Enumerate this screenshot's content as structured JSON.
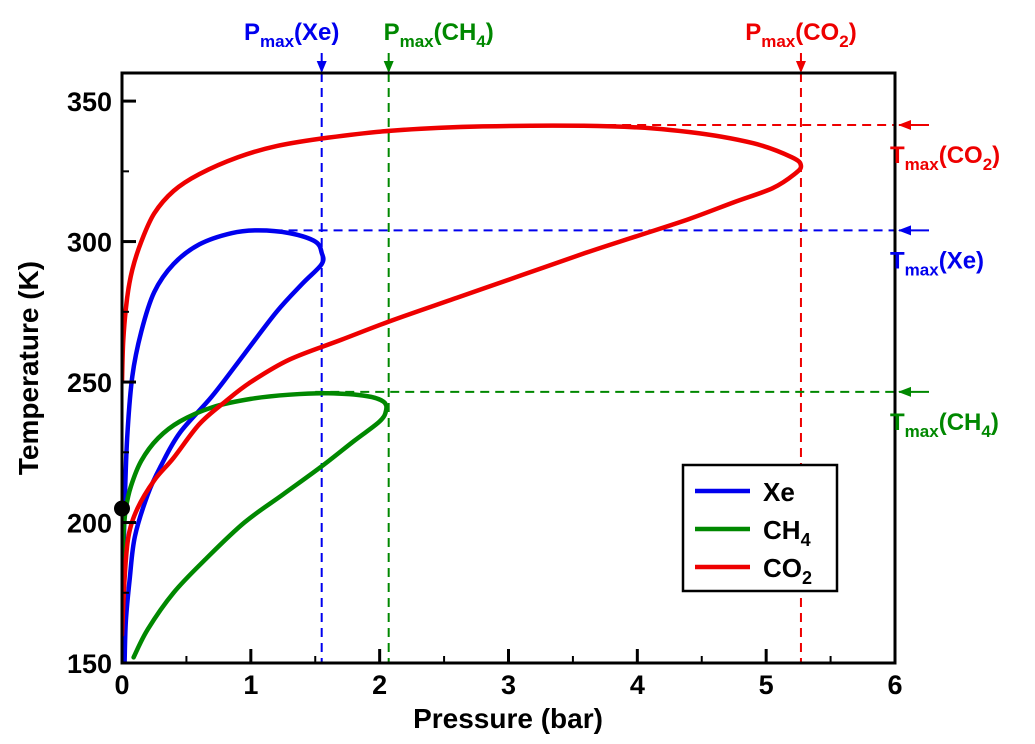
{
  "chart_data": {
    "type": "line",
    "title": "",
    "xlabel": "Pressure (bar)",
    "ylabel": "Temperature (K)",
    "xlim": [
      0,
      6
    ],
    "ylim": [
      150,
      360
    ],
    "xticks": [
      "0",
      "1",
      "2",
      "3",
      "4",
      "5",
      "6"
    ],
    "yticks": [
      "150",
      "200",
      "250",
      "300",
      "350"
    ],
    "grid": false,
    "legend": {
      "placement": "bottom-right",
      "entries": [
        {
          "base": "Xe",
          "sub": ""
        },
        {
          "base": "CH",
          "sub": "4"
        },
        {
          "base": "CO",
          "sub": "2"
        }
      ]
    },
    "series": [
      {
        "name": "Xe",
        "color": "#0000ee",
        "points": [
          [
            0.02,
            150
          ],
          [
            0.03,
            165
          ],
          [
            0.06,
            180
          ],
          [
            0.1,
            195
          ],
          [
            0.2,
            210
          ],
          [
            0.3,
            220
          ],
          [
            0.45,
            232
          ],
          [
            0.7,
            245
          ],
          [
            0.95,
            260
          ],
          [
            1.2,
            275
          ],
          [
            1.4,
            285
          ],
          [
            1.55,
            292
          ],
          [
            1.55,
            296
          ],
          [
            1.5,
            300
          ],
          [
            1.3,
            303
          ],
          [
            1.06,
            304
          ],
          [
            0.85,
            303
          ],
          [
            0.6,
            299
          ],
          [
            0.4,
            292
          ],
          [
            0.25,
            282
          ],
          [
            0.15,
            268
          ],
          [
            0.08,
            252
          ],
          [
            0.04,
            230
          ],
          [
            0.02,
            205
          ],
          [
            0.01,
            185
          ],
          [
            0.0,
            170
          ]
        ]
      },
      {
        "name": "CH4",
        "color": "#008800",
        "points": [
          [
            0.09,
            152
          ],
          [
            0.2,
            162
          ],
          [
            0.4,
            175
          ],
          [
            0.65,
            187
          ],
          [
            0.95,
            200
          ],
          [
            1.25,
            210
          ],
          [
            1.55,
            220
          ],
          [
            1.8,
            229
          ],
          [
            2.0,
            236
          ],
          [
            2.05,
            240
          ],
          [
            2.03,
            243
          ],
          [
            1.9,
            245
          ],
          [
            1.6,
            246
          ],
          [
            1.3,
            245.5
          ],
          [
            1.0,
            244
          ],
          [
            0.7,
            241
          ],
          [
            0.45,
            236
          ],
          [
            0.28,
            230
          ],
          [
            0.15,
            222
          ],
          [
            0.07,
            213
          ],
          [
            0.03,
            205
          ],
          [
            0.01,
            195
          ],
          [
            0.0,
            180
          ],
          [
            0.0,
            165
          ]
        ]
      },
      {
        "name": "CO2",
        "color": "#ee0000",
        "points": [
          [
            0.0,
            160
          ],
          [
            0.02,
            180
          ],
          [
            0.05,
            195
          ],
          [
            0.12,
            205
          ],
          [
            0.25,
            215
          ],
          [
            0.4,
            223
          ],
          [
            0.6,
            235
          ],
          [
            0.8,
            243
          ],
          [
            1.0,
            250
          ],
          [
            1.3,
            258
          ],
          [
            1.7,
            265
          ],
          [
            2.1,
            272
          ],
          [
            2.6,
            280
          ],
          [
            3.1,
            288
          ],
          [
            3.6,
            296
          ],
          [
            4.0,
            302
          ],
          [
            4.4,
            308
          ],
          [
            4.75,
            314
          ],
          [
            5.05,
            319
          ],
          [
            5.22,
            324
          ],
          [
            5.27,
            327
          ],
          [
            5.2,
            330
          ],
          [
            4.9,
            335
          ],
          [
            4.4,
            339
          ],
          [
            3.8,
            341
          ],
          [
            2.8,
            341
          ],
          [
            2.1,
            339.5
          ],
          [
            1.6,
            337
          ],
          [
            1.2,
            334
          ],
          [
            0.9,
            330
          ],
          [
            0.6,
            324
          ],
          [
            0.4,
            318
          ],
          [
            0.25,
            310
          ],
          [
            0.15,
            300
          ],
          [
            0.08,
            290
          ],
          [
            0.04,
            280
          ],
          [
            0.01,
            265
          ],
          [
            0.0,
            250
          ]
        ]
      }
    ],
    "point_marker": {
      "x": 0,
      "y": 205
    },
    "reference_lines": {
      "vertical": [
        {
          "x": 1.55,
          "color": "#0000ee"
        },
        {
          "x": 2.07,
          "color": "#008800"
        },
        {
          "x": 5.27,
          "color": "#ee0000"
        }
      ],
      "horizontal": [
        {
          "y": 304,
          "color": "#0000ee",
          "from": 1.06
        },
        {
          "y": 246.5,
          "color": "#008800",
          "from": 1.5
        },
        {
          "y": 341.5,
          "color": "#ee0000",
          "from": 3.3
        }
      ]
    },
    "annotations": {
      "top": [
        {
          "base": "P",
          "sub": "max",
          "rest": "(Xe)",
          "sub2": "",
          "tail": "",
          "color": "#0000ee",
          "x": 1.55
        },
        {
          "base": "P",
          "sub": "max",
          "rest": "(CH",
          "sub2": "4",
          "tail": ")",
          "color": "#008800",
          "x": 2.07
        },
        {
          "base": "P",
          "sub": "max",
          "rest": "(CO",
          "sub2": "2",
          "tail": ")",
          "color": "#ee0000",
          "x": 5.27
        }
      ],
      "right": [
        {
          "base": "T",
          "sub": "max",
          "rest": "(CO",
          "sub2": "2",
          "tail": ")",
          "color": "#ee0000",
          "y": 341.5
        },
        {
          "base": "T",
          "sub": "max",
          "rest": "(Xe)",
          "sub2": "",
          "tail": "",
          "color": "#0000ee",
          "y": 304
        },
        {
          "base": "T",
          "sub": "max",
          "rest": "(CH",
          "sub2": "4",
          "tail": ")",
          "color": "#008800",
          "y": 246.5
        }
      ]
    }
  }
}
